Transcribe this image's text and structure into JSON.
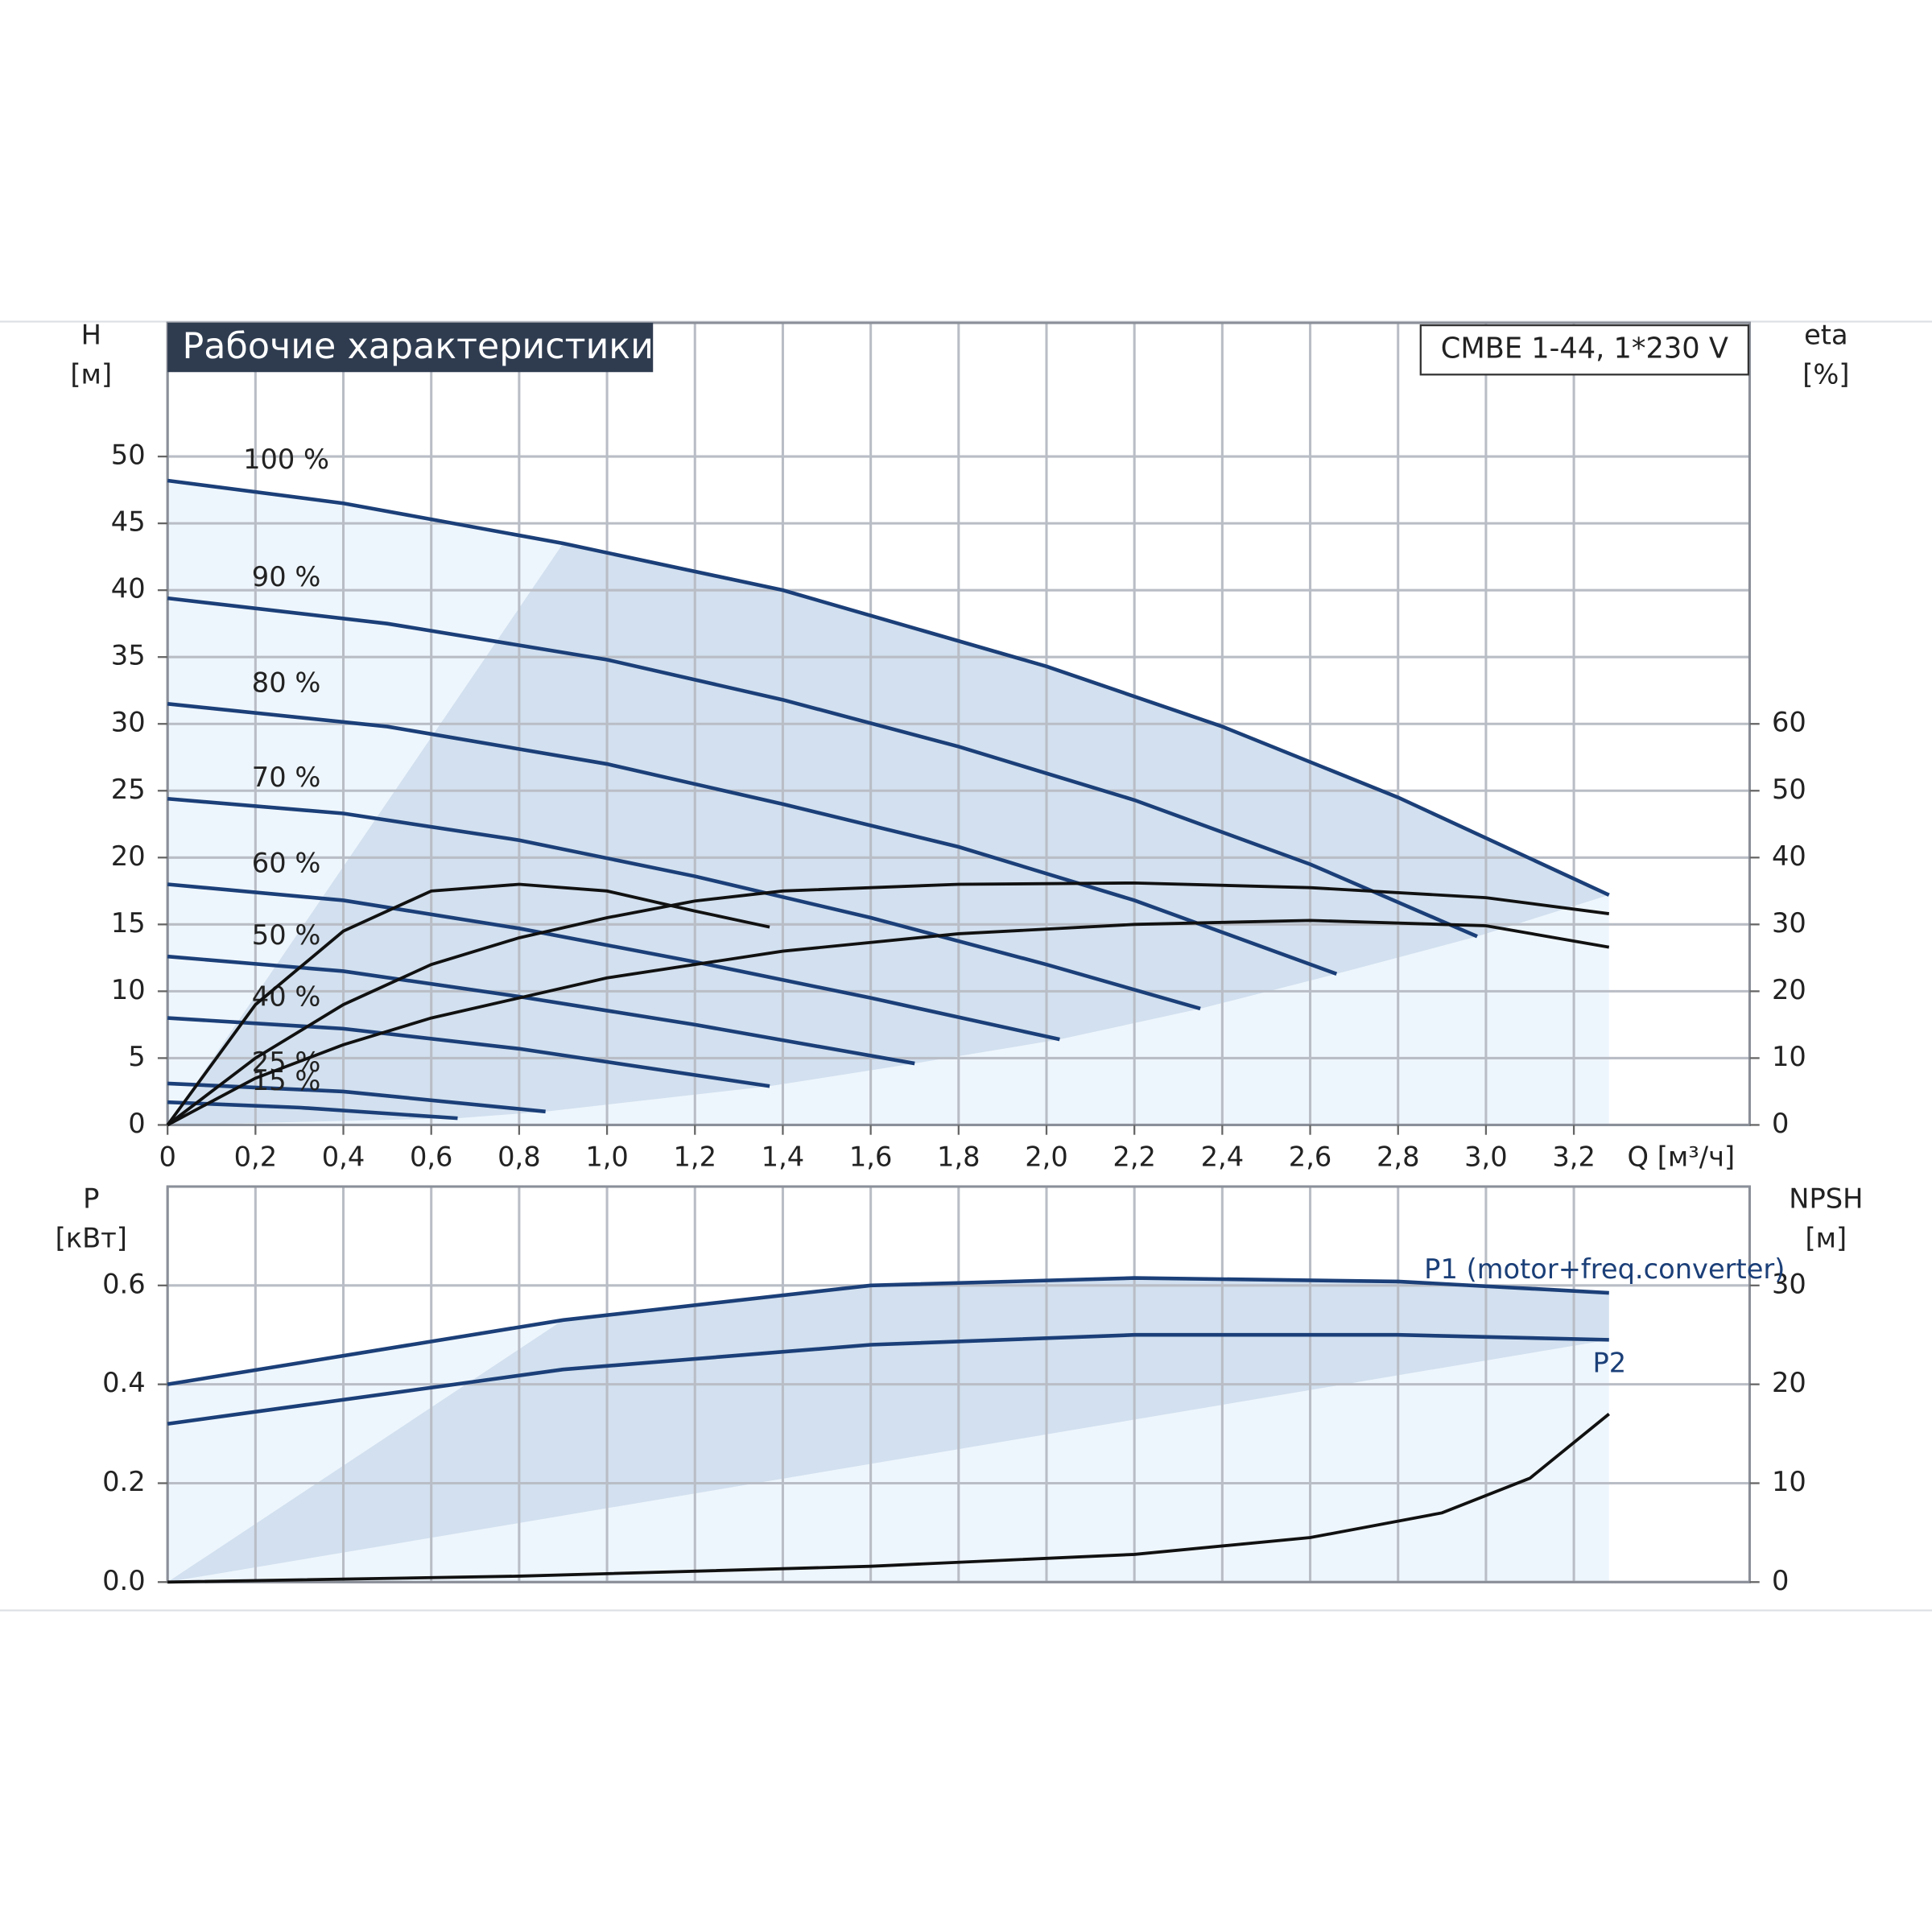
{
  "chart_data": [
    {
      "type": "line",
      "title": "Рабочие характеристики",
      "annotation": "CMBE 1-44, 1*230 V",
      "ylabel": "H",
      "yunit": "[м]",
      "y2label": "eta",
      "y2unit": "[%]",
      "xlabel": "Q [м³/ч]",
      "xlim": [
        0,
        3.6
      ],
      "xticks": [
        0,
        {
          "value": 0.2,
          "label": "0,2"
        },
        {
          "value": 0.4,
          "label": "0,4"
        },
        {
          "value": 0.6,
          "label": "0,6"
        },
        {
          "value": 0.8,
          "label": "0,8"
        },
        {
          "value": 1.0,
          "label": "1,0"
        },
        {
          "value": 1.2,
          "label": "1,2"
        },
        {
          "value": 1.4,
          "label": "1,4"
        },
        {
          "value": 1.6,
          "label": "1,6"
        },
        {
          "value": 1.8,
          "label": "1,8"
        },
        {
          "value": 2.0,
          "label": "2,0"
        },
        {
          "value": 2.2,
          "label": "2,2"
        },
        {
          "value": 2.4,
          "label": "2,4"
        },
        {
          "value": 2.6,
          "label": "2,6"
        },
        {
          "value": 2.8,
          "label": "2,8"
        },
        {
          "value": 3.0,
          "label": "3,0"
        },
        {
          "value": 3.2,
          "label": "3,2"
        }
      ],
      "ylim": [
        0,
        60
      ],
      "yticks": [
        0,
        5,
        10,
        15,
        20,
        25,
        30,
        35,
        40,
        45,
        50
      ],
      "y2lim": [
        0,
        120
      ],
      "y2ticks": [
        0,
        10,
        20,
        30,
        40,
        50,
        60
      ],
      "grid": true,
      "series": [
        {
          "name": "100 %",
          "color": "#1b3f78",
          "x": [
            0,
            0.4,
            0.9,
            1.4,
            2.0,
            2.4,
            2.8,
            3.28
          ],
          "values": [
            48.2,
            46.5,
            43.5,
            40,
            34.3,
            29.8,
            24.5,
            17.2
          ]
        },
        {
          "name": "90 %",
          "color": "#1b3f78",
          "x": [
            0,
            0.5,
            1.0,
            1.4,
            1.8,
            2.2,
            2.6,
            2.98
          ],
          "values": [
            39.4,
            37.5,
            34.8,
            31.8,
            28.3,
            24.3,
            19.5,
            14.1
          ]
        },
        {
          "name": "80 %",
          "color": "#1b3f78",
          "x": [
            0,
            0.5,
            1.0,
            1.4,
            1.8,
            2.2,
            2.66
          ],
          "values": [
            31.5,
            29.8,
            27,
            24,
            20.8,
            16.8,
            11.3
          ]
        },
        {
          "name": "70 %",
          "color": "#1b3f78",
          "x": [
            0,
            0.4,
            0.8,
            1.2,
            1.6,
            2.0,
            2.35
          ],
          "values": [
            24.4,
            23.3,
            21.3,
            18.6,
            15.5,
            12,
            8.7
          ]
        },
        {
          "name": "60 %",
          "color": "#1b3f78",
          "x": [
            0,
            0.4,
            0.8,
            1.2,
            1.6,
            2.03
          ],
          "values": [
            18,
            16.8,
            14.7,
            12.2,
            9.5,
            6.4
          ]
        },
        {
          "name": "50 %",
          "color": "#1b3f78",
          "x": [
            0,
            0.4,
            0.8,
            1.2,
            1.7
          ],
          "values": [
            12.6,
            11.5,
            9.6,
            7.5,
            4.6
          ]
        },
        {
          "name": "40 %",
          "color": "#1b3f78",
          "x": [
            0,
            0.4,
            0.8,
            1.37
          ],
          "values": [
            8,
            7.2,
            5.7,
            2.9
          ]
        },
        {
          "name": "25 %",
          "color": "#1b3f78",
          "x": [
            0,
            0.4,
            0.86
          ],
          "values": [
            3.1,
            2.5,
            1.0
          ]
        },
        {
          "name": "15 %",
          "color": "#1b3f78",
          "x": [
            0,
            0.3,
            0.66
          ],
          "values": [
            1.7,
            1.3,
            0.5
          ]
        },
        {
          "color": "#111111",
          "axis": "y2",
          "x": [
            0,
            0.2,
            0.4,
            0.6,
            0.8,
            1.0,
            1.2,
            1.4,
            1.8,
            2.2,
            2.6,
            3.0,
            3.28
          ],
          "values": [
            0,
            10,
            18,
            24,
            28,
            31,
            33.5,
            35,
            36,
            36.2,
            35.5,
            34,
            31.6
          ]
        },
        {
          "color": "#111111",
          "axis": "y2",
          "x": [
            0,
            0.2,
            0.4,
            0.6,
            0.8,
            1.0,
            1.4,
            1.8,
            2.2,
            2.6,
            3.0,
            3.28
          ],
          "values": [
            0,
            7,
            12,
            16,
            19,
            22,
            26,
            28.6,
            30,
            30.6,
            29.8,
            26.6
          ]
        },
        {
          "color": "#111111",
          "axis": "y2",
          "x": [
            0,
            0.2,
            0.4,
            0.6,
            0.8,
            1.0,
            1.2,
            1.37
          ],
          "values": [
            0,
            18,
            29,
            35,
            36,
            35,
            32,
            29.6
          ]
        }
      ]
    },
    {
      "type": "line",
      "ylabel": "P",
      "yunit": "[кВт]",
      "y2label": "NPSH",
      "y2unit": "[м]",
      "xlim": [
        0,
        3.6
      ],
      "ylim": [
        0,
        0.8
      ],
      "yticks": [
        {
          "value": 0,
          "label": "0.0"
        },
        0.2,
        0.4,
        0.6
      ],
      "y2lim": [
        0,
        40
      ],
      "y2ticks": [
        0,
        10,
        20,
        30
      ],
      "grid": true,
      "series": [
        {
          "name": "P1 (motor+freq.converter)",
          "color": "#1b3f78",
          "x": [
            0,
            0.9,
            1.6,
            2.2,
            2.8,
            3.28
          ],
          "values": [
            0.4,
            0.53,
            0.6,
            0.615,
            0.608,
            0.585
          ]
        },
        {
          "name": "P2",
          "color": "#1b3f78",
          "x": [
            0,
            0.9,
            1.6,
            2.2,
            2.8,
            3.28
          ],
          "values": [
            0.32,
            0.43,
            0.48,
            0.5,
            0.5,
            0.49
          ]
        },
        {
          "color": "#111111",
          "axis": "y2",
          "x": [
            0,
            0.8,
            1.6,
            2.2,
            2.6,
            2.9,
            3.1,
            3.28
          ],
          "values": [
            0,
            0.6,
            1.6,
            2.8,
            4.5,
            7,
            10.5,
            17
          ]
        }
      ]
    }
  ]
}
